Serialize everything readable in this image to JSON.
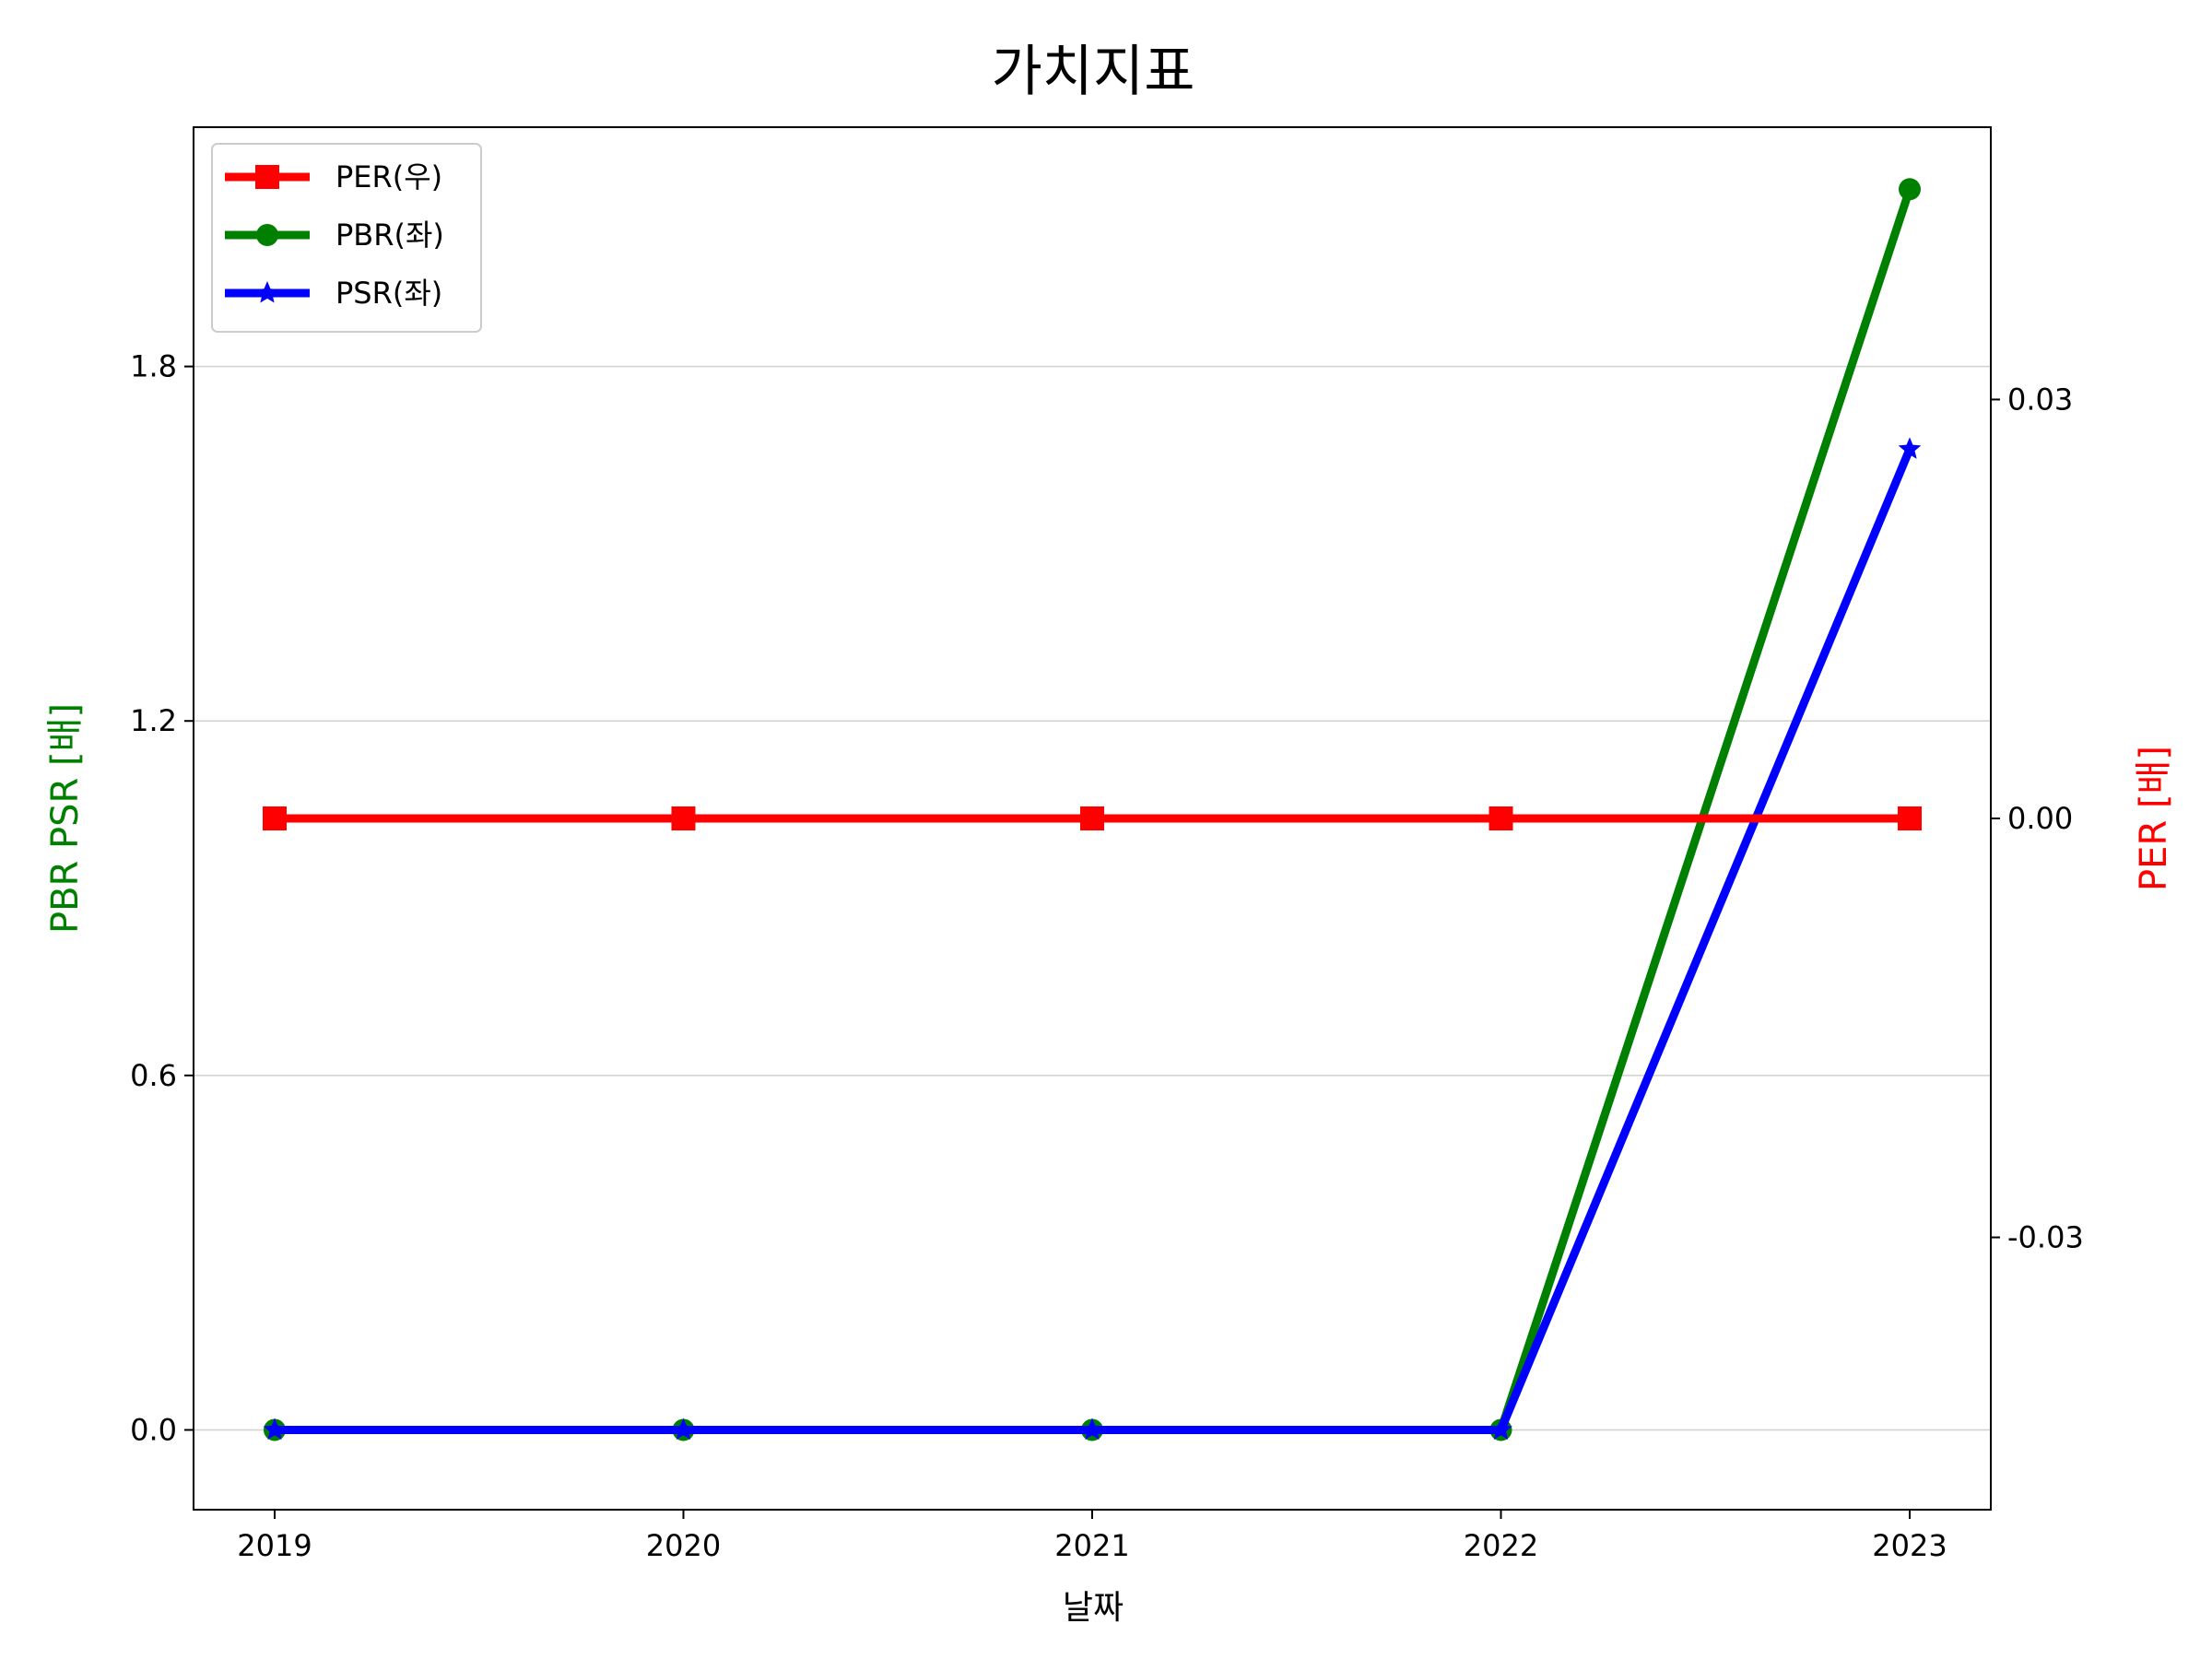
{
  "chart_data": {
    "type": "line",
    "title": "가치지표",
    "xlabel": "날짜",
    "ylabel_left": "PBR PSR [배]",
    "ylabel_right": "PER [배]",
    "categories": [
      "2019",
      "2020",
      "2021",
      "2022",
      "2023"
    ],
    "ylim_left": [
      -0.135,
      2.205
    ],
    "yticks_left": [
      "0.0",
      "0.6",
      "1.2",
      "1.8"
    ],
    "ylim_right": [
      -0.0495,
      0.0495
    ],
    "yticks_right": [
      "-0.03",
      "0.00",
      "0.03"
    ],
    "grid": "horizontal (left axis)",
    "legend_position": "top-left",
    "series": [
      {
        "name": "PER(우)",
        "axis": "right",
        "marker": "square",
        "color": "#ff0000",
        "values": [
          0,
          0,
          0,
          0,
          0
        ]
      },
      {
        "name": "PBR(좌)",
        "axis": "left",
        "marker": "circle",
        "color": "#008000",
        "values": [
          0,
          0,
          0,
          0,
          2.1
        ]
      },
      {
        "name": "PSR(좌)",
        "axis": "left",
        "marker": "star",
        "color": "#0000ff",
        "values": [
          0,
          0,
          0,
          0,
          1.66
        ]
      }
    ],
    "colors": {
      "ylabel_left": "#008000",
      "ylabel_right": "#ff0000"
    }
  }
}
